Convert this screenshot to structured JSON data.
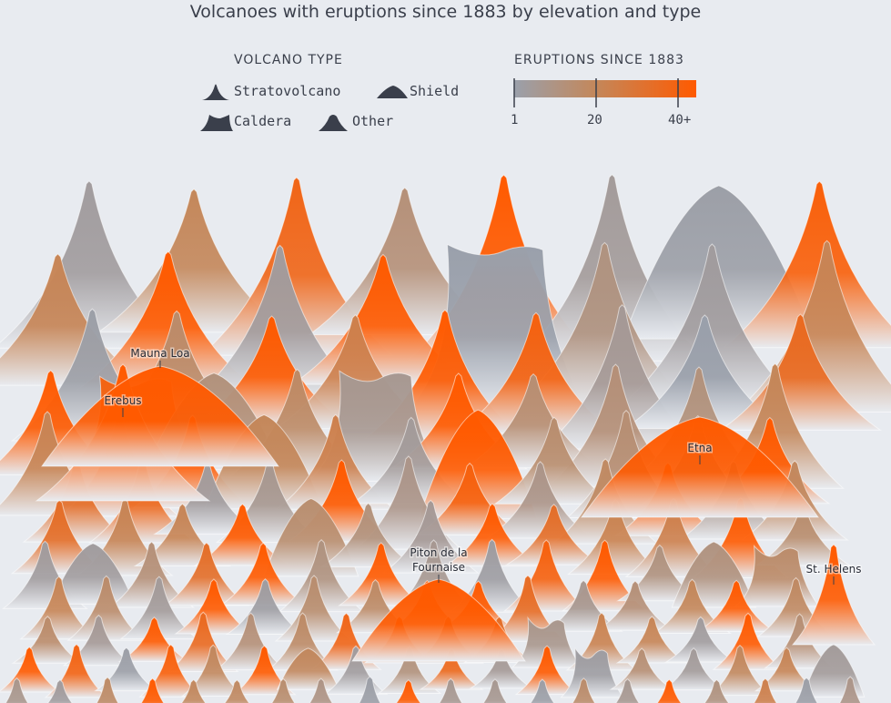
{
  "title": "Volcanoes with eruptions since 1883 by elevation and type",
  "legend": {
    "type_title": "VOLCANO TYPE",
    "types": [
      {
        "key": "strato",
        "label": "Stratovolcano",
        "icon": "stratovolcano-icon"
      },
      {
        "key": "shield",
        "label": "Shield",
        "icon": "shield-icon"
      },
      {
        "key": "caldera",
        "label": "Caldera",
        "icon": "caldera-icon"
      },
      {
        "key": "other",
        "label": "Other",
        "icon": "other-icon"
      }
    ],
    "eruptions_title": "ERUPTIONS SINCE 1883",
    "ticks": [
      "1",
      "20",
      "40+"
    ],
    "colors": {
      "low": "#9aa0ab",
      "mid": "#c4875a",
      "high": "#ff5a00"
    }
  },
  "chart_data": {
    "type": "other",
    "encoding": "Each peak is a volcano; peak height encodes elevation, color encodes eruptions since 1883 (1 to 40+), peak shape encodes volcano type.",
    "color_scale": {
      "min": 1,
      "mid": 20,
      "max": 40
    },
    "labeled_volcanoes": [
      {
        "name": "Mauna Loa",
        "type": "shield",
        "eruptions": 40
      },
      {
        "name": "Erebus",
        "type": "strato",
        "eruptions": 40
      },
      {
        "name": "Etna",
        "type": "shield",
        "eruptions": 40
      },
      {
        "name": "Piton de la Fournaise",
        "type": "shield",
        "eruptions": 40
      },
      {
        "name": "St. Helens",
        "type": "strato",
        "eruptions": 40
      }
    ]
  }
}
